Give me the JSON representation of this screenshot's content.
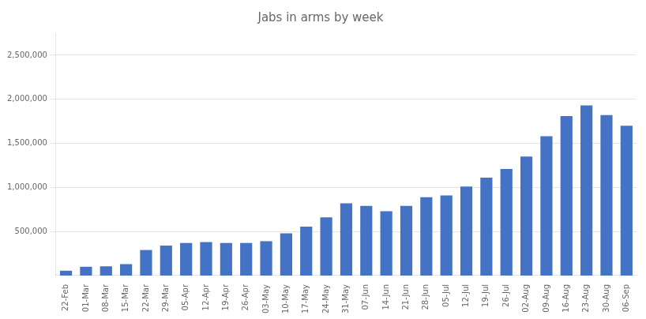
{
  "chart_data": {
    "type": "bar",
    "title": "Jabs in arms by week",
    "categories": [
      "22-Feb",
      "01-Mar",
      "08-Mar",
      "15-Mar",
      "22-Mar",
      "29-Mar",
      "05-Apr",
      "12-Apr",
      "19-Apr",
      "26-Apr",
      "03-May",
      "10-May",
      "17-May",
      "24-May",
      "31-May",
      "07-Jun",
      "14-Jun",
      "21-Jun",
      "28-Jun",
      "05-Jul",
      "12-Jul",
      "19-Jul",
      "26-Jul",
      "02-Aug",
      "09-Aug",
      "16-Aug",
      "23-Aug",
      "30-Aug",
      "06-Sep"
    ],
    "values": [
      55000,
      100000,
      105000,
      130000,
      290000,
      340000,
      370000,
      380000,
      370000,
      370000,
      390000,
      480000,
      555000,
      660000,
      820000,
      790000,
      730000,
      790000,
      890000,
      910000,
      1010000,
      1110000,
      1210000,
      1350000,
      1580000,
      1810000,
      1930000,
      1820000,
      1700000
    ],
    "color": "#4472C4",
    "ylim": [
      0,
      2750000
    ],
    "yticks": [
      {
        "value": 500000,
        "label": "500,000"
      },
      {
        "value": 1000000,
        "label": "1,000,000"
      },
      {
        "value": 1500000,
        "label": "1,500,000"
      },
      {
        "value": 2000000,
        "label": "2,000,000"
      },
      {
        "value": 2500000,
        "label": "2,500,000"
      }
    ],
    "grid": true
  }
}
